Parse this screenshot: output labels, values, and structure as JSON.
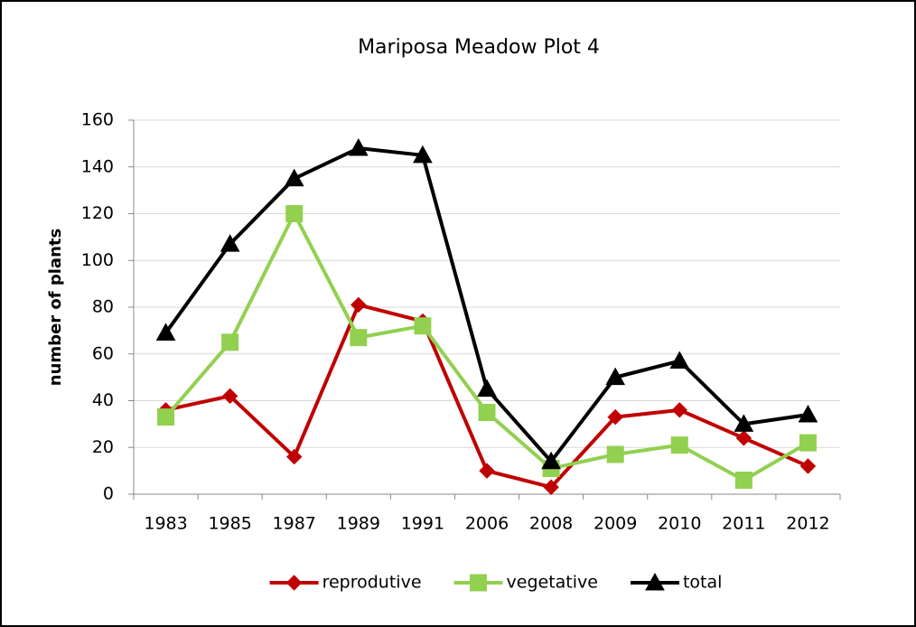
{
  "chart_data": {
    "type": "line",
    "title": "Mariposa Meadow Plot 4",
    "y_label": "number of plants",
    "categories": [
      "1983",
      "1985",
      "1987",
      "1989",
      "1991",
      "2006",
      "2008",
      "2009",
      "2010",
      "2011",
      "2012"
    ],
    "series": [
      {
        "name": "reprodutive",
        "color": "#c00000",
        "marker": "diamond",
        "values": [
          36,
          42,
          16,
          81,
          74,
          10,
          3,
          33,
          36,
          24,
          12
        ]
      },
      {
        "name": "vegetative",
        "color": "#92d050",
        "marker": "square",
        "values": [
          33,
          65,
          120,
          67,
          72,
          35,
          11,
          17,
          21,
          6,
          22
        ]
      },
      {
        "name": "total",
        "color": "#000000",
        "marker": "triangle",
        "values": [
          69,
          107,
          135,
          148,
          145,
          45,
          14,
          50,
          57,
          30,
          34
        ]
      }
    ],
    "ylim": [
      0,
      160
    ],
    "yticks": [
      0,
      20,
      40,
      60,
      80,
      100,
      120,
      140,
      160
    ],
    "grid": true,
    "legend": "bottom"
  }
}
